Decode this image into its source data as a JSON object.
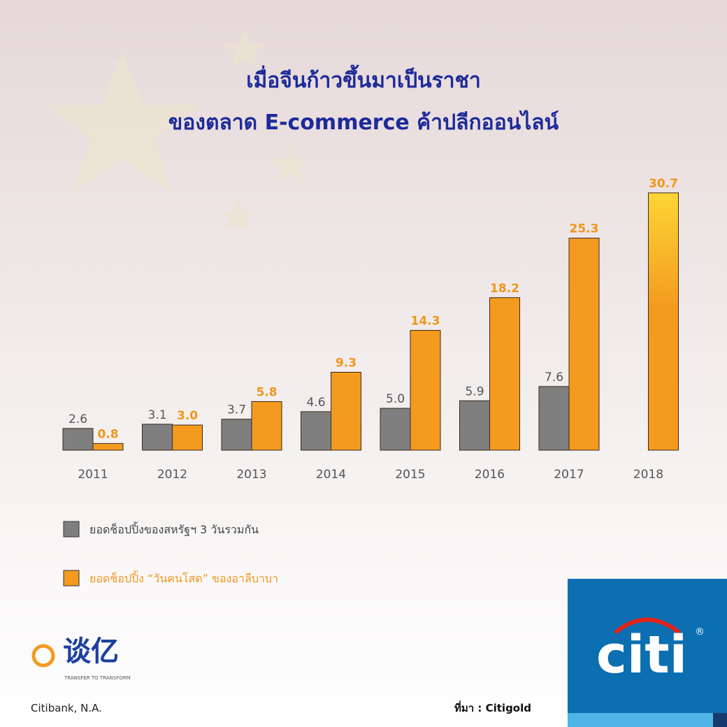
{
  "chart_data": {
    "type": "bar",
    "title": "เมื่อจีนก้าวขึ้นมาเป็นราชา",
    "subtitle": "ของตลาด E-commerce ค้าปลีกออนไลน์",
    "categories": [
      "2011",
      "2012",
      "2013",
      "2014",
      "2015",
      "2016",
      "2017",
      "2018"
    ],
    "series": [
      {
        "name": "ยอดช็อปปิ้งของสหรัฐฯ 3 วันรวมกัน",
        "color": "#7f7f7f",
        "values": [
          2.6,
          3.1,
          3.7,
          4.6,
          5.0,
          5.9,
          7.6,
          null
        ],
        "value_labels": [
          "2.6",
          "3.1",
          "3.7",
          "4.6",
          "5.0",
          "5.9",
          "7.6",
          null
        ]
      },
      {
        "name": "ยอดช็อปปิ้ง “วันคนโสด” ของอาลีบาบา",
        "color": "#f39a1f",
        "values": [
          0.8,
          3.0,
          5.8,
          9.3,
          14.3,
          18.2,
          25.3,
          30.7
        ],
        "value_labels": [
          "0.8",
          "3.0",
          "5.8",
          "9.3",
          "14.3",
          "18.2",
          "25.3",
          "30.7"
        ]
      }
    ],
    "source": "ที่มา : Citigold",
    "footer": "Citibank, N.A.",
    "logos": {
      "brand": "谈亿",
      "tagline": "TRANSFER TO TRANSFORM",
      "bank": "citi",
      "mark": "®"
    }
  }
}
